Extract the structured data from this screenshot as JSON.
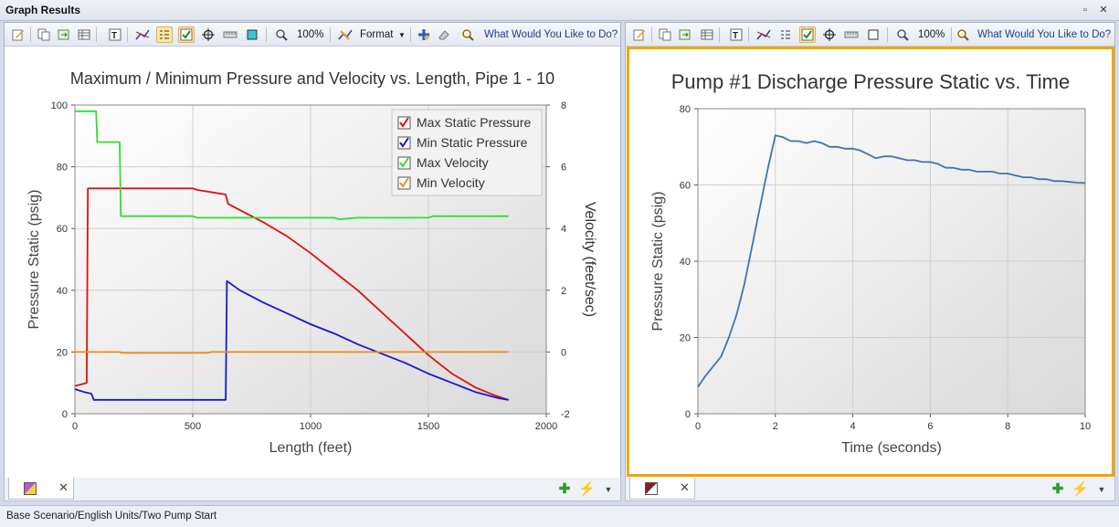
{
  "window": {
    "title": "Graph Results"
  },
  "left_panel": {
    "toolbar": {
      "zoom_label": "100%",
      "format_label": "Format",
      "help_label": "What Would You Like to Do?"
    },
    "tab": {
      "close": "✕"
    }
  },
  "right_panel": {
    "toolbar": {
      "zoom_label": "100%",
      "help_label": "What Would You Like to Do?"
    },
    "tab": {
      "close": "✕"
    }
  },
  "status": {
    "text": "Base Scenario/English Units/Two Pump Start"
  },
  "colors": {
    "max_static": "#e01010",
    "min_static": "#1818d0",
    "max_velocity": "#2ee02e",
    "min_velocity": "#f08a1a",
    "pump_series": "#3f74b0",
    "selection": "#f0a500"
  },
  "chart_data": [
    {
      "type": "line",
      "title": "Maximum / Minimum Pressure and Velocity vs. Length, Pipe 1 - 10",
      "xlabel": "Length (feet)",
      "ylabel": "Pressure Static (psig)",
      "y2label": "Velocity (feet/sec)",
      "xlim": [
        0,
        2000
      ],
      "ylim": [
        0,
        100
      ],
      "y2lim": [
        -2,
        8
      ],
      "xticks": [
        "0",
        "500",
        "1000",
        "1500",
        "2000"
      ],
      "yticks": [
        "0",
        "20",
        "40",
        "60",
        "80",
        "100"
      ],
      "y2ticks": [
        "-2",
        "0",
        "2",
        "4",
        "6",
        "8"
      ],
      "legend_position": "top-right",
      "grid": true,
      "series": [
        {
          "name": "Max Static Pressure",
          "axis": "left",
          "color": "#e01010",
          "points": [
            [
              0,
              9
            ],
            [
              50,
              10
            ],
            [
              55,
              73
            ],
            [
              500,
              73
            ],
            [
              520,
              72.5
            ],
            [
              600,
              71.5
            ],
            [
              640,
              71
            ],
            [
              650,
              68
            ],
            [
              700,
              66
            ],
            [
              800,
              62
            ],
            [
              900,
              57.5
            ],
            [
              1000,
              52
            ],
            [
              1100,
              46
            ],
            [
              1200,
              40
            ],
            [
              1300,
              33
            ],
            [
              1400,
              26
            ],
            [
              1500,
              19
            ],
            [
              1600,
              13
            ],
            [
              1700,
              8.5
            ],
            [
              1780,
              6
            ],
            [
              1840,
              4.5
            ]
          ]
        },
        {
          "name": "Min Static Pressure",
          "axis": "left",
          "color": "#1818d0",
          "points": [
            [
              0,
              8
            ],
            [
              40,
              7
            ],
            [
              70,
              6.5
            ],
            [
              80,
              4.5
            ],
            [
              640,
              4.5
            ],
            [
              645,
              43
            ],
            [
              700,
              40
            ],
            [
              800,
              36
            ],
            [
              900,
              32.5
            ],
            [
              1000,
              29
            ],
            [
              1100,
              26
            ],
            [
              1200,
              22.5
            ],
            [
              1300,
              19.5
            ],
            [
              1400,
              16.5
            ],
            [
              1500,
              13
            ],
            [
              1600,
              10
            ],
            [
              1700,
              7
            ],
            [
              1800,
              5
            ],
            [
              1840,
              4.5
            ]
          ]
        },
        {
          "name": "Max Velocity",
          "axis": "right",
          "color": "#2ee02e",
          "points": [
            [
              0,
              7.8
            ],
            [
              90,
              7.8
            ],
            [
              95,
              6.8
            ],
            [
              190,
              6.8
            ],
            [
              195,
              4.4
            ],
            [
              500,
              4.4
            ],
            [
              520,
              4.35
            ],
            [
              1100,
              4.35
            ],
            [
              1120,
              4.3
            ],
            [
              1200,
              4.35
            ],
            [
              1500,
              4.35
            ],
            [
              1520,
              4.4
            ],
            [
              1840,
              4.4
            ]
          ]
        },
        {
          "name": "Min Velocity",
          "axis": "right",
          "color": "#f08a1a",
          "points": [
            [
              0,
              0
            ],
            [
              190,
              0
            ],
            [
              200,
              -0.03
            ],
            [
              560,
              -0.03
            ],
            [
              580,
              0
            ],
            [
              1840,
              0
            ]
          ]
        }
      ]
    },
    {
      "type": "line",
      "title": "Pump #1 Discharge Pressure Static vs. Time",
      "xlabel": "Time (seconds)",
      "ylabel": "Pressure Static (psig)",
      "xlim": [
        0,
        10
      ],
      "ylim": [
        0,
        80
      ],
      "xticks": [
        "0",
        "2",
        "4",
        "6",
        "8",
        "10"
      ],
      "yticks": [
        "0",
        "20",
        "40",
        "60",
        "80"
      ],
      "grid": true,
      "series": [
        {
          "color": "#3f74b0",
          "points": [
            [
              0,
              7
            ],
            [
              0.1,
              8.5
            ],
            [
              0.2,
              10
            ],
            [
              0.4,
              12.5
            ],
            [
              0.6,
              15
            ],
            [
              0.8,
              20
            ],
            [
              1.0,
              26
            ],
            [
              1.2,
              34
            ],
            [
              1.4,
              44
            ],
            [
              1.6,
              54
            ],
            [
              1.8,
              64
            ],
            [
              2.0,
              73
            ],
            [
              2.2,
              72.5
            ],
            [
              2.4,
              71.5
            ],
            [
              2.6,
              71.5
            ],
            [
              2.8,
              71
            ],
            [
              3.0,
              71.5
            ],
            [
              3.2,
              71
            ],
            [
              3.4,
              70
            ],
            [
              3.6,
              70
            ],
            [
              3.8,
              69.5
            ],
            [
              4.0,
              69.5
            ],
            [
              4.2,
              69
            ],
            [
              4.4,
              68
            ],
            [
              4.6,
              67
            ],
            [
              4.8,
              67.5
            ],
            [
              5.0,
              67.5
            ],
            [
              5.2,
              67
            ],
            [
              5.4,
              66.5
            ],
            [
              5.6,
              66.5
            ],
            [
              5.8,
              66
            ],
            [
              6.0,
              66
            ],
            [
              6.2,
              65.5
            ],
            [
              6.4,
              64.5
            ],
            [
              6.6,
              64.5
            ],
            [
              6.8,
              64
            ],
            [
              7.0,
              64
            ],
            [
              7.2,
              63.5
            ],
            [
              7.4,
              63.5
            ],
            [
              7.6,
              63.5
            ],
            [
              7.8,
              63
            ],
            [
              8.0,
              63
            ],
            [
              8.2,
              62.5
            ],
            [
              8.4,
              62
            ],
            [
              8.6,
              62
            ],
            [
              8.8,
              61.5
            ],
            [
              9.0,
              61.5
            ],
            [
              9.2,
              61
            ],
            [
              9.4,
              61
            ],
            [
              9.6,
              60.8
            ],
            [
              9.8,
              60.6
            ],
            [
              10.0,
              60.5
            ]
          ]
        }
      ]
    }
  ]
}
